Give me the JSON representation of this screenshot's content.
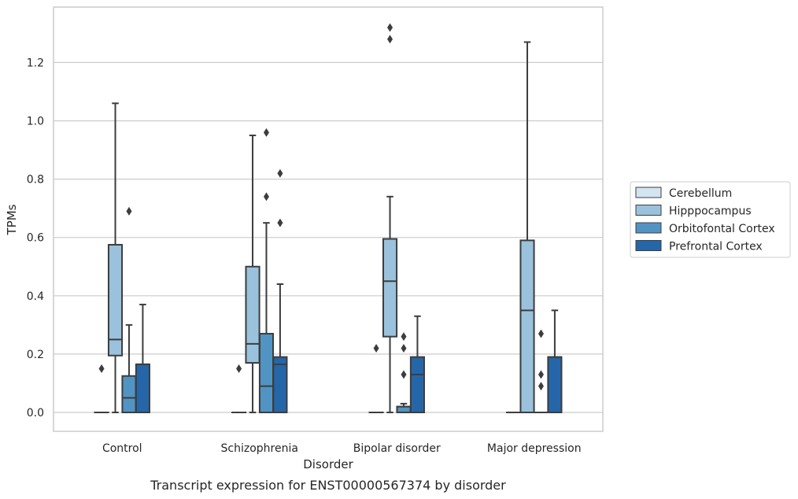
{
  "chart_data": {
    "type": "box",
    "title": "",
    "xlabel": "Disorder",
    "ylabel": "TPMs",
    "caption": "Transcript expression for ENST00000567374 by disorder",
    "categories": [
      "Control",
      "Schizophrenia",
      "Bipolar disorder",
      "Major depression"
    ],
    "ylim": [
      -0.065,
      1.38
    ],
    "yticks": [
      0.0,
      0.2,
      0.4,
      0.6,
      0.8,
      1.0,
      1.2
    ],
    "ytick_labels": [
      "0.0",
      "0.2",
      "0.4",
      "0.6",
      "0.8",
      "1.0",
      "1.2"
    ],
    "grid": true,
    "legend_position": "right",
    "series": [
      {
        "name": "Cerebellum",
        "color": "#d4e4f1",
        "boxes": [
          {
            "whislo": 0,
            "q1": 0,
            "med": 0,
            "q3": 0,
            "whishi": 0,
            "fliers": [
              0.15
            ]
          },
          {
            "whislo": 0,
            "q1": 0,
            "med": 0,
            "q3": 0,
            "whishi": 0,
            "fliers": [
              0.15
            ]
          },
          {
            "whislo": 0,
            "q1": 0,
            "med": 0,
            "q3": 0,
            "whishi": 0,
            "fliers": [
              0.22
            ]
          },
          {
            "whislo": 0,
            "q1": 0,
            "med": 0,
            "q3": 0,
            "whishi": 0,
            "fliers": []
          }
        ]
      },
      {
        "name": "Hipppocampus",
        "color": "#9ac2dc",
        "boxes": [
          {
            "whislo": 0,
            "q1": 0.195,
            "med": 0.25,
            "q3": 0.575,
            "whishi": 1.06,
            "fliers": []
          },
          {
            "whislo": 0,
            "q1": 0.17,
            "med": 0.235,
            "q3": 0.5,
            "whishi": 0.95,
            "fliers": []
          },
          {
            "whislo": 0,
            "q1": 0.26,
            "med": 0.45,
            "q3": 0.595,
            "whishi": 0.74,
            "fliers": [
              1.28,
              1.32
            ]
          },
          {
            "whislo": 0,
            "q1": 0,
            "med": 0.35,
            "q3": 0.59,
            "whishi": 1.27,
            "fliers": []
          }
        ]
      },
      {
        "name": "Orbitofontal Cortex",
        "color": "#5194c3",
        "boxes": [
          {
            "whislo": 0,
            "q1": 0,
            "med": 0.05,
            "q3": 0.125,
            "whishi": 0.3,
            "fliers": [
              0.69
            ]
          },
          {
            "whislo": 0,
            "q1": 0,
            "med": 0.09,
            "q3": 0.27,
            "whishi": 0.65,
            "fliers": [
              0.74,
              0.96
            ]
          },
          {
            "whislo": 0,
            "q1": 0,
            "med": 0.02,
            "q3": 0.02,
            "whishi": 0.03,
            "fliers": [
              0.13,
              0.22,
              0.26
            ]
          },
          {
            "whislo": 0,
            "q1": 0,
            "med": 0,
            "q3": 0,
            "whishi": 0,
            "fliers": [
              0.09,
              0.13,
              0.27
            ]
          }
        ]
      },
      {
        "name": "Prefrontal Cortex",
        "color": "#2566a8",
        "boxes": [
          {
            "whislo": 0,
            "q1": 0,
            "med": 0.165,
            "q3": 0.165,
            "whishi": 0.37,
            "fliers": []
          },
          {
            "whislo": 0,
            "q1": 0,
            "med": 0.165,
            "q3": 0.19,
            "whishi": 0.44,
            "fliers": [
              0.65,
              0.82
            ]
          },
          {
            "whislo": 0,
            "q1": 0,
            "med": 0.13,
            "q3": 0.19,
            "whishi": 0.33,
            "fliers": []
          },
          {
            "whislo": 0,
            "q1": 0,
            "med": 0.19,
            "q3": 0.19,
            "whishi": 0.35,
            "fliers": []
          }
        ]
      }
    ]
  }
}
